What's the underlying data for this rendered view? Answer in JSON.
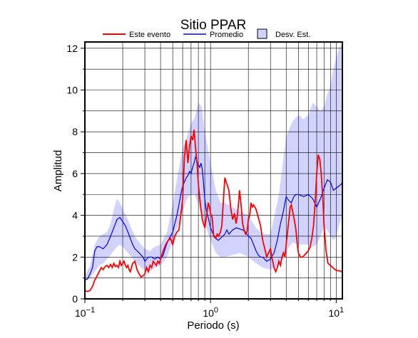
{
  "chart_data": {
    "type": "line",
    "title": "Sitio PPAR",
    "xlabel": "Periodo (s)",
    "ylabel": "Amplitud",
    "x_scale": "log",
    "xlim": [
      0.1,
      11.2
    ],
    "ylim": [
      0,
      12.3
    ],
    "x_ticks": [
      0.1,
      1,
      10
    ],
    "x_tick_labels": [
      {
        "base": "10",
        "exp": "−1"
      },
      {
        "base": "10",
        "exp": "0"
      },
      {
        "base": "10",
        "exp": "1"
      }
    ],
    "y_ticks": [
      0,
      2,
      4,
      6,
      8,
      10,
      12
    ],
    "y_tick_labels": [
      "0",
      "2",
      "4",
      "6",
      "8",
      "10",
      "12"
    ],
    "y_grid": [
      0,
      1,
      2,
      3,
      4,
      5,
      6,
      7,
      8,
      9,
      10,
      11,
      12
    ],
    "grid": true,
    "legend_position": "top",
    "legend": [
      {
        "label": "Este evento",
        "kind": "line",
        "color": "#ff0000"
      },
      {
        "label": "Promedio",
        "kind": "line",
        "color": "#0000ff"
      },
      {
        "label": "Desv. Est.",
        "kind": "band",
        "color": "#d2d2ff"
      }
    ],
    "band": {
      "name": "Desv. Est.",
      "color": "#d2d2ff",
      "x": [
        0.1,
        0.11,
        0.12,
        0.13,
        0.14,
        0.15,
        0.16,
        0.17,
        0.18,
        0.19,
        0.2,
        0.22,
        0.25,
        0.28,
        0.3,
        0.33,
        0.36,
        0.4,
        0.45,
        0.5,
        0.55,
        0.6,
        0.65,
        0.7,
        0.75,
        0.8,
        0.85,
        0.9,
        1.0,
        1.1,
        1.2,
        1.3,
        1.5,
        1.7,
        2.0,
        2.3,
        2.6,
        3.0,
        3.5,
        4.0,
        4.5,
        5.0,
        5.5,
        6.0,
        6.5,
        7.0,
        7.5,
        8.0,
        8.5,
        9.0,
        9.5,
        10.0,
        10.5,
        11.2
      ],
      "lower": [
        0.9,
        1.0,
        1.3,
        1.6,
        1.7,
        1.9,
        2.1,
        2.3,
        2.5,
        2.6,
        2.5,
        2.2,
        1.8,
        1.5,
        1.4,
        1.3,
        1.5,
        1.6,
        2.0,
        2.8,
        3.5,
        4.2,
        4.8,
        5.0,
        5.0,
        4.5,
        4.0,
        3.6,
        2.8,
        2.2,
        2.0,
        2.0,
        2.1,
        2.2,
        2.0,
        1.7,
        1.5,
        1.4,
        1.6,
        2.3,
        2.7,
        2.6,
        2.6,
        2.6,
        2.5,
        2.6,
        3.0,
        3.4,
        3.3,
        3.0,
        2.8,
        3.0,
        3.5,
        4.0
      ],
      "upper": [
        1.1,
        1.6,
        2.6,
        3.0,
        3.1,
        3.2,
        3.6,
        4.3,
        4.8,
        4.6,
        4.3,
        3.8,
        3.0,
        2.6,
        2.4,
        2.3,
        2.5,
        2.6,
        3.2,
        4.5,
        6.0,
        7.2,
        7.8,
        8.4,
        8.7,
        9.4,
        9.2,
        8.0,
        6.5,
        5.2,
        4.6,
        4.6,
        4.4,
        4.2,
        4.0,
        3.4,
        3.1,
        3.1,
        5.0,
        7.8,
        8.5,
        8.8,
        8.6,
        8.8,
        9.4,
        9.2,
        9.0,
        9.2,
        9.8,
        10.2,
        11.0,
        11.5,
        12.0,
        12.3
      ]
    },
    "series": [
      {
        "name": "Este evento",
        "color": "#ff0000",
        "x": [
          0.1,
          0.105,
          0.11,
          0.115,
          0.12,
          0.125,
          0.13,
          0.135,
          0.14,
          0.145,
          0.15,
          0.155,
          0.16,
          0.165,
          0.17,
          0.175,
          0.18,
          0.185,
          0.19,
          0.195,
          0.2,
          0.205,
          0.21,
          0.215,
          0.22,
          0.225,
          0.23,
          0.24,
          0.25,
          0.26,
          0.27,
          0.28,
          0.29,
          0.3,
          0.31,
          0.32,
          0.33,
          0.34,
          0.35,
          0.36,
          0.37,
          0.38,
          0.39,
          0.4,
          0.42,
          0.44,
          0.46,
          0.48,
          0.5,
          0.52,
          0.54,
          0.56,
          0.58,
          0.6,
          0.62,
          0.64,
          0.66,
          0.68,
          0.7,
          0.72,
          0.74,
          0.76,
          0.78,
          0.8,
          0.82,
          0.84,
          0.86,
          0.88,
          0.9,
          0.92,
          0.94,
          0.96,
          0.98,
          1.0,
          1.03,
          1.06,
          1.1,
          1.13,
          1.16,
          1.2,
          1.23,
          1.26,
          1.3,
          1.35,
          1.4,
          1.45,
          1.5,
          1.55,
          1.6,
          1.65,
          1.7,
          1.75,
          1.8,
          1.85,
          1.9,
          1.95,
          2.0,
          2.05,
          2.1,
          2.15,
          2.2,
          2.3,
          2.4,
          2.5,
          2.6,
          2.7,
          2.8,
          2.9,
          3.0,
          3.1,
          3.2,
          3.3,
          3.4,
          3.5,
          3.6,
          3.7,
          3.8,
          3.9,
          4.0,
          4.1,
          4.2,
          4.3,
          4.4,
          4.5,
          4.6,
          4.7,
          4.8,
          4.9,
          5.0,
          5.2,
          5.4,
          5.6,
          5.8,
          6.0,
          6.2,
          6.4,
          6.6,
          6.8,
          7.0,
          7.2,
          7.4,
          7.6,
          7.8,
          8.0,
          8.3,
          8.6,
          9.0,
          9.4,
          9.8,
          10.2,
          10.6,
          11.0,
          11.2
        ],
        "y": [
          0.4,
          0.35,
          0.4,
          0.6,
          0.9,
          1.1,
          1.3,
          1.5,
          1.4,
          1.55,
          1.6,
          1.5,
          1.65,
          1.5,
          1.7,
          1.55,
          1.6,
          1.5,
          1.8,
          1.6,
          1.7,
          1.8,
          1.6,
          1.5,
          1.6,
          1.4,
          1.3,
          1.7,
          1.8,
          1.4,
          1.2,
          1.05,
          1.1,
          1.2,
          1.5,
          1.3,
          1.6,
          1.5,
          1.8,
          1.7,
          1.6,
          1.8,
          1.7,
          1.9,
          2.3,
          2.6,
          2.8,
          2.9,
          2.6,
          3.0,
          3.2,
          3.3,
          4.0,
          4.8,
          6.8,
          7.6,
          6.5,
          7.3,
          7.8,
          7.6,
          8.1,
          7.2,
          6.5,
          5.5,
          4.8,
          4.3,
          3.8,
          3.6,
          3.4,
          3.8,
          4.2,
          4.6,
          4.4,
          4.1,
          3.9,
          3.0,
          2.9,
          3.1,
          3.0,
          3.2,
          3.5,
          4.5,
          5.8,
          5.5,
          5.2,
          4.3,
          3.8,
          4.1,
          3.6,
          4.2,
          5.2,
          4.5,
          3.6,
          3.3,
          3.1,
          3.2,
          3.8,
          4.0,
          4.6,
          4.4,
          4.5,
          4.3,
          3.9,
          3.5,
          2.8,
          2.4,
          2.0,
          2.2,
          2.4,
          1.9,
          1.5,
          1.3,
          1.5,
          1.8,
          1.6,
          2.0,
          2.2,
          2.0,
          2.6,
          3.2,
          3.8,
          4.4,
          4.5,
          4.2,
          3.9,
          3.6,
          3.2,
          2.6,
          2.2,
          2.0,
          2.0,
          2.1,
          2.2,
          2.3,
          2.5,
          2.9,
          3.5,
          4.6,
          6.0,
          6.9,
          6.7,
          6.0,
          5.0,
          3.5,
          2.3,
          1.7,
          1.6,
          1.5,
          1.4,
          1.35,
          1.35,
          1.3,
          1.3
        ]
      },
      {
        "name": "Promedio",
        "color": "#0000ff",
        "x": [
          0.1,
          0.105,
          0.11,
          0.115,
          0.12,
          0.125,
          0.13,
          0.14,
          0.15,
          0.16,
          0.17,
          0.18,
          0.19,
          0.2,
          0.21,
          0.22,
          0.23,
          0.24,
          0.25,
          0.26,
          0.27,
          0.28,
          0.29,
          0.3,
          0.32,
          0.34,
          0.36,
          0.38,
          0.4,
          0.42,
          0.44,
          0.46,
          0.48,
          0.5,
          0.52,
          0.54,
          0.56,
          0.58,
          0.6,
          0.62,
          0.64,
          0.66,
          0.68,
          0.7,
          0.72,
          0.74,
          0.76,
          0.78,
          0.8,
          0.82,
          0.84,
          0.86,
          0.88,
          0.9,
          0.92,
          0.95,
          1.0,
          1.05,
          1.1,
          1.15,
          1.2,
          1.25,
          1.3,
          1.35,
          1.4,
          1.5,
          1.6,
          1.7,
          1.8,
          1.9,
          2.0,
          2.1,
          2.2,
          2.3,
          2.4,
          2.5,
          2.6,
          2.8,
          3.0,
          3.2,
          3.4,
          3.6,
          3.8,
          4.0,
          4.2,
          4.4,
          4.6,
          4.8,
          5.0,
          5.5,
          6.0,
          6.5,
          7.0,
          7.5,
          8.0,
          8.5,
          9.0,
          9.5,
          10.0,
          10.5,
          11.0,
          11.2
        ],
        "y": [
          0.9,
          0.95,
          1.2,
          1.5,
          2.3,
          2.5,
          2.5,
          2.4,
          2.6,
          3.0,
          3.4,
          3.8,
          3.9,
          3.7,
          3.5,
          3.2,
          2.9,
          2.6,
          2.4,
          2.3,
          2.2,
          2.1,
          2.0,
          1.8,
          2.0,
          2.0,
          1.9,
          2.0,
          1.9,
          2.1,
          2.5,
          2.8,
          3.0,
          3.2,
          3.6,
          4.0,
          4.5,
          5.0,
          5.4,
          5.6,
          5.8,
          5.9,
          6.1,
          6.0,
          6.3,
          6.5,
          6.8,
          6.6,
          6.4,
          6.3,
          6.5,
          6.2,
          5.5,
          4.8,
          4.3,
          4.0,
          3.4,
          3.1,
          2.9,
          2.8,
          2.9,
          3.0,
          3.1,
          3.3,
          3.1,
          3.3,
          3.4,
          3.35,
          3.3,
          3.2,
          3.0,
          2.9,
          2.6,
          2.3,
          2.1,
          2.0,
          2.0,
          1.8,
          1.9,
          2.2,
          2.8,
          3.6,
          4.2,
          4.9,
          4.7,
          4.6,
          4.9,
          5.0,
          5.0,
          4.9,
          5.0,
          4.8,
          4.4,
          4.8,
          5.3,
          5.7,
          5.6,
          5.2,
          5.3,
          5.4,
          5.5,
          5.6
        ]
      }
    ]
  }
}
